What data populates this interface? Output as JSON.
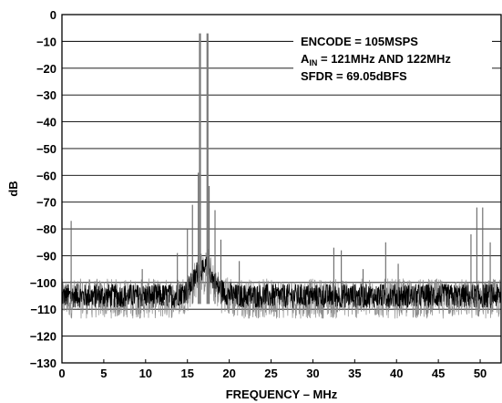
{
  "chart_data": {
    "type": "line",
    "title": "",
    "xlabel": "FREQUENCY – MHz",
    "ylabel": "dB",
    "xlim": [
      0,
      52.5
    ],
    "ylim": [
      -130,
      0
    ],
    "x_ticks": [
      0,
      5,
      10,
      15,
      20,
      25,
      30,
      35,
      40,
      45,
      50
    ],
    "y_ticks": [
      0,
      -10,
      -20,
      -30,
      -40,
      -50,
      -60,
      -70,
      -80,
      -90,
      -100,
      -110,
      -120,
      -130
    ],
    "x_tick_labels": [
      "0",
      "5",
      "10",
      "15",
      "20",
      "25",
      "30",
      "35",
      "40",
      "45",
      "50"
    ],
    "y_tick_labels": [
      "0",
      "−10",
      "−20",
      "−30",
      "−40",
      "−50",
      "−60",
      "−70",
      "−80",
      "−90",
      "−100",
      "−110",
      "−120",
      "−130"
    ],
    "grid": "horizontal",
    "noise_floor_db": -105,
    "annotation": {
      "line1": "ENCODE = 105MSPS",
      "line2_prefix": "A",
      "line2_sub": "IN",
      "line2_rest": " = 121MHz AND 122MHz",
      "line3": "SFDR = 69.05dBFS"
    },
    "series": [
      {
        "peaks": [
          {
            "x": 16.5,
            "y": -7
          },
          {
            "x": 17.4,
            "y": -7
          },
          {
            "x": 16.3,
            "y": -59
          },
          {
            "x": 17.6,
            "y": -64
          },
          {
            "x": 15.6,
            "y": -71
          },
          {
            "x": 18.3,
            "y": -73
          },
          {
            "x": 15.0,
            "y": -80
          },
          {
            "x": 19.0,
            "y": -84
          },
          {
            "x": 1.1,
            "y": -77
          },
          {
            "x": 9.6,
            "y": -95
          },
          {
            "x": 13.8,
            "y": -89
          },
          {
            "x": 21.2,
            "y": -92
          },
          {
            "x": 32.5,
            "y": -87
          },
          {
            "x": 33.4,
            "y": -88
          },
          {
            "x": 36.0,
            "y": -95
          },
          {
            "x": 38.7,
            "y": -85
          },
          {
            "x": 40.2,
            "y": -93
          },
          {
            "x": 48.9,
            "y": -82
          },
          {
            "x": 49.6,
            "y": -72
          },
          {
            "x": 50.3,
            "y": -72
          },
          {
            "x": 51.2,
            "y": -85
          }
        ]
      }
    ]
  }
}
